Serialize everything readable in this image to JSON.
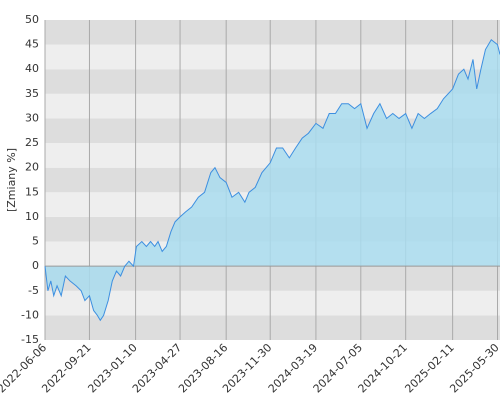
{
  "chart_data": {
    "type": "area",
    "ylabel": "[Zmiany %]",
    "x": [
      "2022-06-06",
      "2022-06-13",
      "2022-06-20",
      "2022-06-27",
      "2022-07-05",
      "2022-07-15",
      "2022-07-25",
      "2022-08-05",
      "2022-08-20",
      "2022-09-01",
      "2022-09-10",
      "2022-09-21",
      "2022-10-01",
      "2022-10-10",
      "2022-10-17",
      "2022-10-25",
      "2022-11-05",
      "2022-11-15",
      "2022-11-25",
      "2022-12-05",
      "2022-12-15",
      "2022-12-25",
      "2023-01-05",
      "2023-01-12",
      "2023-01-25",
      "2023-02-05",
      "2023-02-15",
      "2023-02-25",
      "2023-03-05",
      "2023-03-15",
      "2023-03-25",
      "2023-04-05",
      "2023-04-15",
      "2023-04-27",
      "2023-05-10",
      "2023-05-25",
      "2023-06-10",
      "2023-06-25",
      "2023-07-10",
      "2023-07-20",
      "2023-08-01",
      "2023-08-16",
      "2023-08-30",
      "2023-09-15",
      "2023-09-30",
      "2023-10-10",
      "2023-10-25",
      "2023-11-10",
      "2023-11-30",
      "2023-12-15",
      "2023-12-30",
      "2024-01-15",
      "2024-01-30",
      "2024-02-15",
      "2024-03-01",
      "2024-03-19",
      "2024-04-05",
      "2024-04-20",
      "2024-05-05",
      "2024-05-20",
      "2024-06-05",
      "2024-06-20",
      "2024-07-05",
      "2024-07-20",
      "2024-08-05",
      "2024-08-20",
      "2024-09-05",
      "2024-09-20",
      "2024-10-05",
      "2024-10-21",
      "2024-11-05",
      "2024-11-20",
      "2024-12-05",
      "2024-12-20",
      "2025-01-05",
      "2025-01-20",
      "2025-02-11",
      "2025-02-25",
      "2025-03-10",
      "2025-03-20",
      "2025-04-01",
      "2025-04-10",
      "2025-04-20",
      "2025-05-01",
      "2025-05-15",
      "2025-05-30",
      "2025-06-05"
    ],
    "values": [
      0,
      -5,
      -3,
      -6,
      -4,
      -6,
      -2,
      -3,
      -4,
      -5,
      -7,
      -6,
      -9,
      -10,
      -11,
      -10,
      -7,
      -3,
      -1,
      -2,
      0,
      1,
      0,
      4,
      5,
      4,
      5,
      4,
      5,
      3,
      4,
      7,
      9,
      10,
      11,
      12,
      14,
      15,
      19,
      20,
      18,
      17,
      14,
      15,
      13,
      15,
      16,
      19,
      21,
      24,
      24,
      22,
      24,
      26,
      27,
      29,
      28,
      31,
      31,
      33,
      33,
      32,
      33,
      28,
      31,
      33,
      30,
      31,
      30,
      31,
      28,
      31,
      30,
      31,
      32,
      34,
      36,
      39,
      40,
      38,
      42,
      36,
      40,
      44,
      46,
      45,
      43
    ],
    "line_color": "#3d8fe0",
    "fill_color": "#a9dcee",
    "xlim": [
      "2022-06-06",
      "2025-06-05"
    ],
    "xticks": [
      "2022-06-06",
      "2022-09-21",
      "2023-01-10",
      "2023-04-27",
      "2023-08-16",
      "2023-11-30",
      "2024-03-19",
      "2024-07-05",
      "2024-10-21",
      "2025-02-11",
      "2025-05-30"
    ],
    "ylim": [
      -15,
      50
    ],
    "yticks": [
      -15,
      -10,
      -5,
      0,
      5,
      10,
      15,
      20,
      25,
      30,
      35,
      40,
      45,
      50
    ],
    "grid": true
  }
}
